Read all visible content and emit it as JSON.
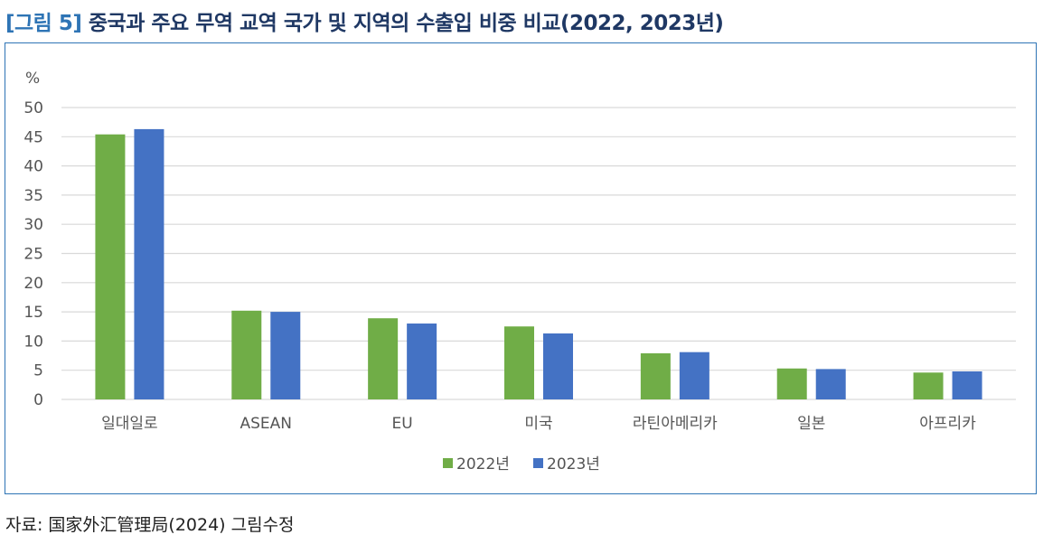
{
  "title_tag": "[그림 5]",
  "title": "중국과 주요 무역 교역 국가 및 지역의 수출입 비중 비교(2022, 2023년)",
  "source": "자료: 国家外汇管理局(2024) 그림수정",
  "chart_data": {
    "type": "bar",
    "title": "중국과 주요 무역 교역 국가 및 지역의 수출입 비중 비교(2022, 2023년)",
    "ylabel": "%",
    "xlabel": "",
    "ylim": [
      0,
      50
    ],
    "yticks": [
      0,
      5,
      10,
      15,
      20,
      25,
      30,
      35,
      40,
      45,
      50
    ],
    "grid": true,
    "legend_position": "bottom",
    "categories": [
      "일대일로",
      "ASEAN",
      "EU",
      "미국",
      "라틴아메리카",
      "일본",
      "아프리카"
    ],
    "series": [
      {
        "name": "2022년",
        "color": "#70ad47",
        "values": [
          45.4,
          15.2,
          13.9,
          12.5,
          7.9,
          5.3,
          4.6
        ]
      },
      {
        "name": "2023년",
        "color": "#4472c4",
        "values": [
          46.3,
          15.0,
          13.0,
          11.3,
          8.1,
          5.2,
          4.8
        ]
      }
    ]
  }
}
